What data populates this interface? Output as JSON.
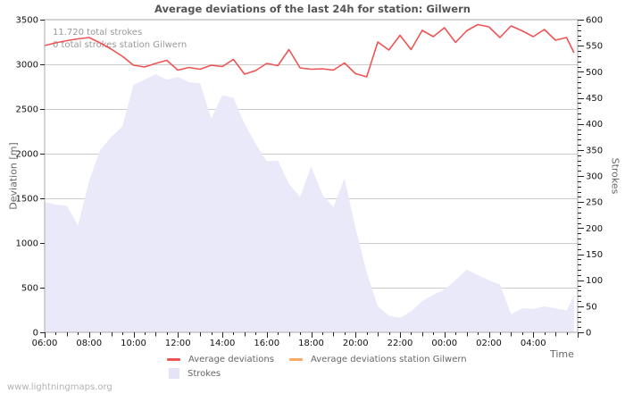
{
  "title": "Average deviations of the last 24h for station: Gilwern",
  "annotations": {
    "line1": "11.720 total strokes",
    "line2": "0 total strokes station Gilwern"
  },
  "watermark": "www.lightningmaps.org",
  "legend": [
    {
      "label": "Average deviations",
      "color": "#ef5454",
      "swatch": "line"
    },
    {
      "label": "Average deviations station Gilwern",
      "color": "#fbaa63",
      "swatch": "line"
    },
    {
      "label": "Strokes",
      "color": "#e4e4f6",
      "swatch": "area"
    }
  ],
  "colors": {
    "deviation_line": "#ef5454",
    "station_line": "#fbaa63",
    "strokes_fill": "#e9e9f9",
    "grid": "#cccccc",
    "border": "#aaaaaa",
    "tick": "#222222",
    "tick_label": "#111111"
  },
  "chart_data": {
    "type": "line+area",
    "title": "Average deviations of the last 24h for station: Gilwern",
    "grid": "horizontal",
    "legend_position": "bottom",
    "x": [
      "06:00",
      "06:30",
      "07:00",
      "07:30",
      "08:00",
      "08:30",
      "09:00",
      "09:30",
      "10:00",
      "10:30",
      "11:00",
      "11:30",
      "12:00",
      "12:30",
      "13:00",
      "13:30",
      "14:00",
      "14:30",
      "15:00",
      "15:30",
      "16:00",
      "16:30",
      "17:00",
      "17:30",
      "18:00",
      "18:30",
      "19:00",
      "19:30",
      "20:00",
      "20:30",
      "21:00",
      "21:30",
      "22:00",
      "22:30",
      "23:00",
      "23:30",
      "00:00",
      "00:30",
      "01:00",
      "01:30",
      "02:00",
      "02:30",
      "03:00",
      "03:30",
      "04:00",
      "04:30",
      "05:00",
      "05:30",
      "05:50"
    ],
    "series": [
      {
        "name": "Average deviations",
        "type": "line",
        "axis": "left",
        "color": "#ef5454",
        "values": [
          3210,
          3240,
          3265,
          3285,
          3300,
          3240,
          3170,
          3090,
          2990,
          2970,
          3010,
          3045,
          2935,
          2965,
          2945,
          2990,
          2975,
          3055,
          2890,
          2930,
          3010,
          2985,
          3165,
          2960,
          2945,
          2950,
          2935,
          3015,
          2895,
          2860,
          3250,
          3160,
          3325,
          3165,
          3380,
          3310,
          3410,
          3245,
          3375,
          3445,
          3420,
          3300,
          3430,
          3375,
          3310,
          3390,
          3270,
          3300,
          3130
        ]
      },
      {
        "name": "Average deviations station Gilwern",
        "type": "line",
        "axis": "left",
        "color": "#fbaa63",
        "values": []
      },
      {
        "name": "Strokes",
        "type": "area",
        "axis": "right",
        "color": "#e9e9f9",
        "values": [
          250,
          245,
          243,
          205,
          290,
          350,
          375,
          395,
          475,
          485,
          495,
          485,
          490,
          480,
          478,
          410,
          455,
          450,
          400,
          362,
          328,
          330,
          285,
          260,
          318,
          265,
          240,
          295,
          200,
          115,
          50,
          32,
          28,
          40,
          60,
          72,
          82,
          100,
          120,
          110,
          100,
          92,
          35,
          46,
          45,
          50,
          46,
          42,
          70
        ]
      }
    ],
    "left_axis": {
      "label": "Deviation [m]",
      "min": 0,
      "max": 3500,
      "tick_step": 500,
      "tick_labels": [
        "3500",
        "3000",
        "2500",
        "2000",
        "1500",
        "1000",
        "500",
        "0"
      ]
    },
    "right_axis": {
      "label": "Strokes",
      "min": 0,
      "max": 600,
      "tick_step": 50,
      "minor_tick_step": 10,
      "tick_labels": [
        "600",
        "550",
        "500",
        "450",
        "400",
        "350",
        "300",
        "250",
        "200",
        "150",
        "100",
        "50",
        "0"
      ]
    },
    "x_axis": {
      "label": "Time",
      "start": "06:00",
      "span_hours": 24,
      "tick_labels": [
        "06:00",
        "08:00",
        "10:00",
        "12:00",
        "14:00",
        "16:00",
        "18:00",
        "20:00",
        "22:00",
        "00:00",
        "02:00",
        "04:00"
      ],
      "minor_tick_minutes": 30
    }
  }
}
